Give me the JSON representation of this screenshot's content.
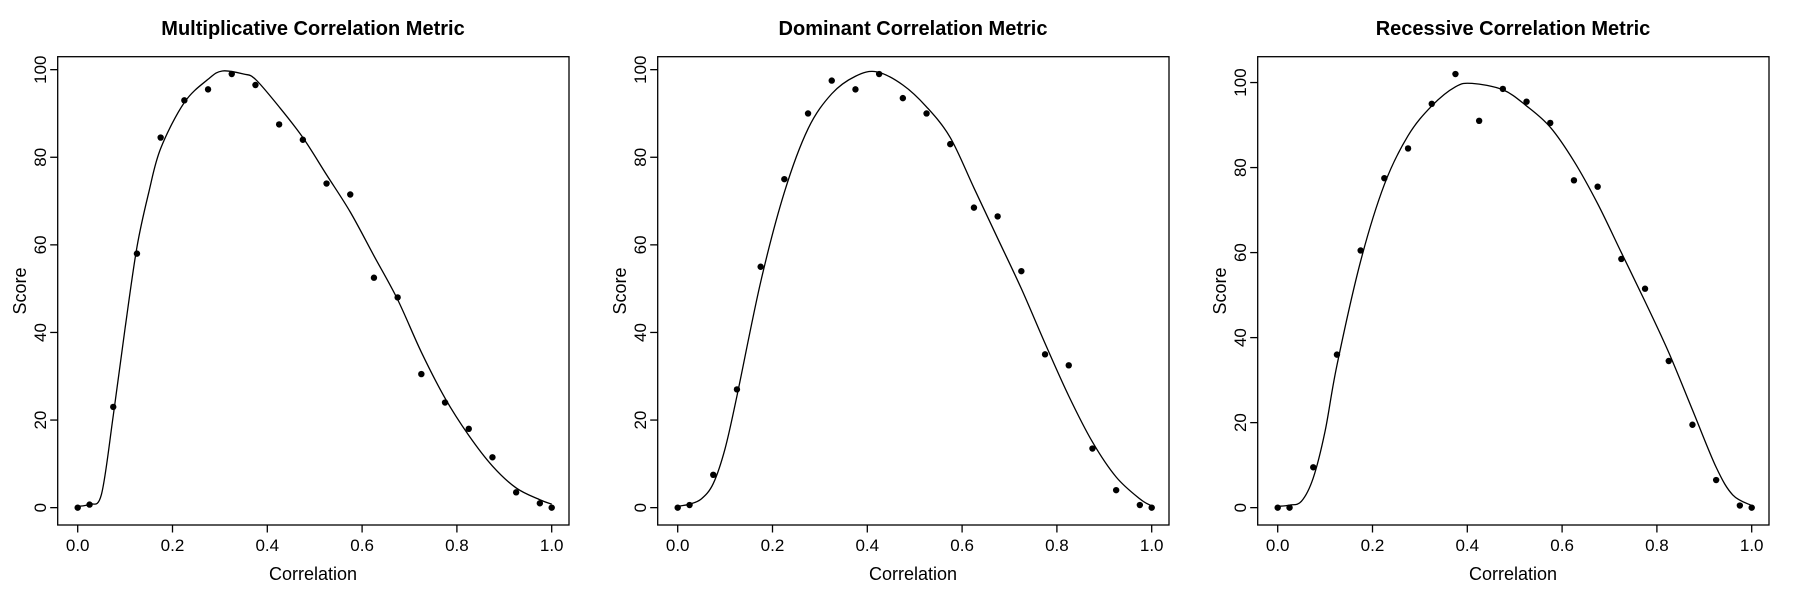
{
  "page": {
    "background": "#ffffff",
    "foreground": "#000000"
  },
  "chart_data": [
    {
      "type": "scatter",
      "title": "Multiplicative Correlation Metric",
      "xlabel": "Correlation",
      "ylabel": "Score",
      "point_color": "#000000",
      "line_color": "#000000",
      "grid": "off",
      "xlim": [
        0,
        1
      ],
      "x_ticks": [
        0,
        0.2,
        0.4,
        0.6,
        0.8,
        1.0
      ],
      "x_tick_labels": [
        "0.0",
        "0.2",
        "0.4",
        "0.6",
        "0.8",
        "1.0"
      ],
      "y_ticks": [
        0,
        20,
        40,
        60,
        80,
        100
      ],
      "y_tick_labels": [
        "0",
        "20",
        "40",
        "60",
        "80",
        "100"
      ],
      "points": {
        "x": [
          0,
          0.025,
          0.075,
          0.125,
          0.175,
          0.225,
          0.275,
          0.325,
          0.375,
          0.425,
          0.475,
          0.525,
          0.575,
          0.625,
          0.675,
          0.725,
          0.775,
          0.825,
          0.875,
          0.925,
          0.975,
          1.0
        ],
        "y": [
          0,
          0.7,
          23,
          58,
          84.5,
          93,
          95.5,
          99,
          96.5,
          87.5,
          84,
          74,
          71.5,
          52.5,
          48,
          30.5,
          24,
          18,
          11.5,
          3.5,
          1,
          0
        ]
      },
      "fit_curve": {
        "x": [
          0,
          0.025,
          0.05,
          0.075,
          0.1,
          0.125,
          0.15,
          0.175,
          0.225,
          0.275,
          0.305,
          0.35,
          0.375,
          0.425,
          0.475,
          0.525,
          0.575,
          0.625,
          0.675,
          0.725,
          0.775,
          0.825,
          0.875,
          0.925,
          0.975,
          1.0
        ],
        "y": [
          0.3,
          0.8,
          3,
          21,
          41,
          59.5,
          72,
          82,
          92.5,
          97.8,
          99.7,
          99,
          97.8,
          91.5,
          84.5,
          76,
          67.5,
          57.5,
          47.5,
          35.5,
          25,
          16.5,
          9.5,
          4.5,
          1.8,
          0.8
        ]
      }
    },
    {
      "type": "scatter",
      "title": "Dominant Correlation Metric",
      "xlabel": "Correlation",
      "ylabel": "Score",
      "point_color": "#000000",
      "line_color": "#000000",
      "grid": "off",
      "xlim": [
        0,
        1
      ],
      "x_ticks": [
        0,
        0.2,
        0.4,
        0.6,
        0.8,
        1.0
      ],
      "x_tick_labels": [
        "0.0",
        "0.2",
        "0.4",
        "0.6",
        "0.8",
        "1.0"
      ],
      "y_ticks": [
        0,
        20,
        40,
        60,
        80,
        100
      ],
      "y_tick_labels": [
        "0",
        "20",
        "40",
        "60",
        "80",
        "100"
      ],
      "points": {
        "x": [
          0,
          0.025,
          0.075,
          0.125,
          0.175,
          0.225,
          0.275,
          0.325,
          0.375,
          0.425,
          0.475,
          0.525,
          0.575,
          0.625,
          0.675,
          0.725,
          0.775,
          0.825,
          0.875,
          0.925,
          0.975,
          1.0
        ],
        "y": [
          0,
          0.6,
          7.5,
          27,
          55,
          75,
          90,
          97.5,
          95.5,
          99,
          93.5,
          90,
          83,
          68.5,
          66.5,
          54,
          35,
          32.5,
          13.5,
          4,
          0.6,
          0
        ]
      },
      "fit_curve": {
        "x": [
          0,
          0.025,
          0.05,
          0.075,
          0.1,
          0.125,
          0.175,
          0.225,
          0.275,
          0.325,
          0.375,
          0.42,
          0.475,
          0.525,
          0.575,
          0.625,
          0.675,
          0.725,
          0.775,
          0.825,
          0.875,
          0.925,
          0.975,
          1.0
        ],
        "y": [
          0.3,
          0.8,
          2,
          5.5,
          13.5,
          25.5,
          51.5,
          72,
          86.5,
          94.5,
          98.5,
          99.5,
          96.5,
          91.5,
          84.5,
          73,
          61.5,
          50,
          37.5,
          25.5,
          15,
          7,
          2,
          0.4
        ]
      }
    },
    {
      "type": "scatter",
      "title": "Recessive Correlation Metric",
      "xlabel": "Correlation",
      "ylabel": "Score",
      "point_color": "#000000",
      "line_color": "#000000",
      "grid": "off",
      "xlim": [
        0,
        1
      ],
      "x_ticks": [
        0,
        0.2,
        0.4,
        0.6,
        0.8,
        1.0
      ],
      "x_tick_labels": [
        "0.0",
        "0.2",
        "0.4",
        "0.6",
        "0.8",
        "1.0"
      ],
      "y_ticks": [
        0,
        20,
        40,
        60,
        80,
        100
      ],
      "y_tick_labels": [
        "0",
        "20",
        "40",
        "60",
        "80",
        "100"
      ],
      "points": {
        "x": [
          0,
          0.025,
          0.075,
          0.125,
          0.175,
          0.225,
          0.275,
          0.325,
          0.375,
          0.425,
          0.475,
          0.525,
          0.575,
          0.625,
          0.675,
          0.725,
          0.775,
          0.825,
          0.875,
          0.925,
          0.975,
          1.0
        ],
        "y": [
          0,
          0,
          9.5,
          36,
          60.5,
          77.5,
          84.5,
          95,
          102,
          91,
          98.5,
          95.5,
          90.5,
          77,
          75.5,
          58.5,
          51.5,
          34.5,
          19.5,
          6.5,
          0.5,
          0
        ]
      },
      "fit_curve": {
        "x": [
          0,
          0.025,
          0.05,
          0.075,
          0.1,
          0.125,
          0.175,
          0.225,
          0.275,
          0.325,
          0.375,
          0.41,
          0.475,
          0.525,
          0.575,
          0.625,
          0.675,
          0.725,
          0.775,
          0.825,
          0.875,
          0.925,
          0.96,
          1.0
        ],
        "y": [
          0.3,
          0.6,
          1.5,
          7,
          18,
          33.5,
          58,
          76,
          87.5,
          94.5,
          99,
          99.8,
          98.3,
          94.5,
          89.5,
          81.5,
          71.5,
          60,
          48.5,
          36.5,
          23,
          9.5,
          3,
          0.5
        ]
      }
    }
  ]
}
